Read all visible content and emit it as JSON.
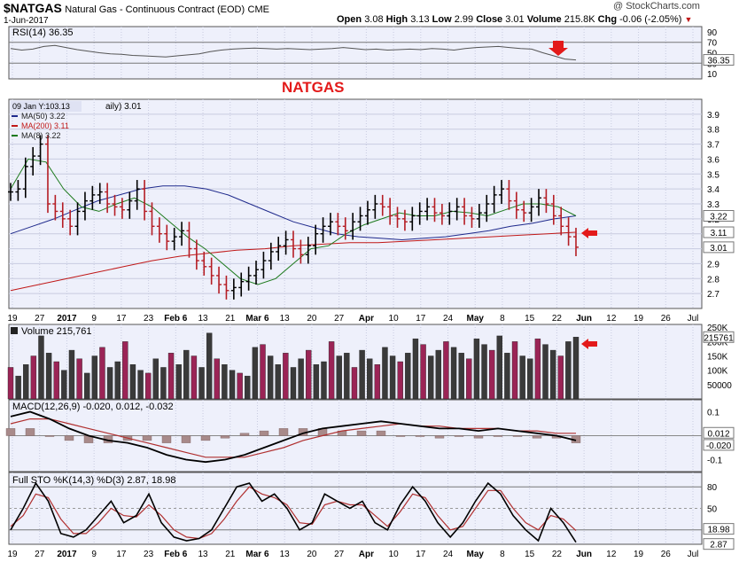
{
  "header": {
    "symbol": "$NATGAS",
    "name": "Natural Gas - Continuous Contract (EOD)",
    "exchange": "CME",
    "date": "1-Jun-2017",
    "watermark": "@ StockCharts.com",
    "ohlc": {
      "open_label": "Open",
      "open": "3.08",
      "high_label": "High",
      "high": "3.13",
      "low_label": "Low",
      "low": "2.99",
      "close_label": "Close",
      "close": "3.01",
      "volume_label": "Volume",
      "volume": "215.8K",
      "chg_label": "Chg",
      "chg": "-0.06 (-2.05%)"
    },
    "down_arrow": "▼"
  },
  "colors": {
    "panel_bg": "#eef0fb",
    "grid": "#c8cbe0",
    "up": "#000000",
    "down": "#b51d24",
    "ma50": "#1f2a8c",
    "ma200": "#c01818",
    "ma8": "#1d7a1d",
    "volume_up": "#3a3a3a",
    "volume_down": "#9b2456",
    "arrow": "#e31a1a",
    "rsi": "#555555",
    "macd": "#000000",
    "signal": "#b03030",
    "histogram": "#a88a8a"
  },
  "annotations": {
    "natgas_label": "NATGAS",
    "hover_tooltip": "09 Jan Y:103.13"
  },
  "chart_data": [
    {
      "type": "line",
      "panel": "rsi",
      "title": "RSI(14) 36.35",
      "ylim": [
        0,
        100
      ],
      "y_ticks": [
        10,
        30,
        50,
        70,
        90
      ],
      "reference_lines": [
        30,
        70
      ],
      "current_value_label": "36.35",
      "series": [
        {
          "name": "RSI(14)",
          "values": [
            58,
            55,
            57,
            62,
            64,
            60,
            56,
            53,
            50,
            48,
            47,
            45,
            44,
            43,
            42,
            44,
            46,
            48,
            52,
            55,
            57,
            58,
            59,
            58,
            57,
            58,
            57,
            56,
            57,
            58,
            60,
            58,
            56,
            57,
            55,
            56,
            57,
            56,
            58,
            57,
            55,
            58,
            60,
            61,
            62,
            60,
            58,
            57,
            50,
            44,
            38,
            36.35
          ]
        }
      ]
    },
    {
      "type": "candlestick",
      "panel": "price",
      "title": "NATGAS",
      "ylim": [
        2.6,
        4.0
      ],
      "y_ticks": [
        2.7,
        2.8,
        2.9,
        3.0,
        3.1,
        3.2,
        3.3,
        3.4,
        3.5,
        3.6,
        3.7,
        3.8,
        3.9
      ],
      "x_tick_labels": [
        "19",
        "27",
        "2017",
        "9",
        "17",
        "23",
        "Feb 6",
        "13",
        "21",
        "Mar 6",
        "13",
        "20",
        "27",
        "Apr",
        "10",
        "17",
        "24",
        "May",
        "8",
        "15",
        "22",
        "Jun",
        "12",
        "19",
        "26",
        "Jul"
      ],
      "legend": [
        {
          "label": "MA(50) 3.22",
          "color_key": "ma50"
        },
        {
          "label": "MA(200) 3.11",
          "color_key": "ma200"
        },
        {
          "label": "MA(8) 3.22",
          "color_key": "ma8"
        }
      ],
      "partial_legend_text": "aily) 3.01",
      "axis_value_labels": [
        "3.22",
        "3.11",
        "3.01"
      ],
      "closes": [
        3.38,
        3.4,
        3.55,
        3.62,
        3.7,
        3.3,
        3.25,
        3.2,
        3.15,
        3.25,
        3.32,
        3.36,
        3.38,
        3.3,
        3.28,
        3.26,
        3.32,
        3.4,
        3.25,
        3.15,
        3.1,
        3.05,
        3.08,
        3.12,
        3.0,
        2.92,
        2.88,
        2.82,
        2.76,
        2.72,
        2.74,
        2.78,
        2.82,
        2.86,
        2.92,
        2.98,
        3.02,
        3.06,
        3.0,
        2.96,
        3.02,
        3.1,
        3.15,
        3.18,
        3.15,
        3.12,
        3.18,
        3.22,
        3.26,
        3.3,
        3.28,
        3.22,
        3.2,
        3.18,
        3.22,
        3.25,
        3.28,
        3.24,
        3.22,
        3.25,
        3.28,
        3.22,
        3.2,
        3.24,
        3.3,
        3.36,
        3.4,
        3.32,
        3.26,
        3.24,
        3.28,
        3.34,
        3.3,
        3.22,
        3.15,
        3.08,
        3.01
      ],
      "series": [
        {
          "name": "MA(50)",
          "values": [
            3.1,
            3.15,
            3.2,
            3.26,
            3.32,
            3.36,
            3.4,
            3.42,
            3.42,
            3.4,
            3.36,
            3.3,
            3.24,
            3.18,
            3.14,
            3.1,
            3.08,
            3.07,
            3.06,
            3.07,
            3.08,
            3.1,
            3.12,
            3.15,
            3.17,
            3.2,
            3.22
          ]
        },
        {
          "name": "MA(200)",
          "values": [
            2.72,
            2.76,
            2.8,
            2.84,
            2.88,
            2.92,
            2.95,
            2.97,
            2.99,
            3.0,
            3.02,
            3.03,
            3.04,
            3.04,
            3.05,
            3.06,
            3.07,
            3.08,
            3.09,
            3.1,
            3.11
          ]
        },
        {
          "name": "MA(8)",
          "values": [
            3.4,
            3.6,
            3.58,
            3.4,
            3.28,
            3.25,
            3.3,
            3.34,
            3.28,
            3.18,
            3.08,
            3.0,
            2.9,
            2.8,
            2.76,
            2.8,
            2.9,
            3.0,
            3.02,
            3.1,
            3.16,
            3.2,
            3.24,
            3.22,
            3.22,
            3.25,
            3.24,
            3.22,
            3.26,
            3.3,
            3.3,
            3.28,
            3.22
          ]
        }
      ]
    },
    {
      "type": "bar",
      "panel": "volume",
      "title": "Volume 215,761",
      "ylim": [
        0,
        260000
      ],
      "y_tick_labels": [
        "250K",
        "200K",
        "150K",
        "100K",
        "50000"
      ],
      "current_value_label": "215761",
      "values": [
        110,
        80,
        120,
        150,
        220,
        160,
        130,
        100,
        170,
        140,
        90,
        150,
        180,
        110,
        130,
        200,
        120,
        100,
        90,
        140,
        110,
        160,
        120,
        170,
        150,
        110,
        230,
        140,
        120,
        100,
        90,
        80,
        180,
        190,
        150,
        120,
        160,
        110,
        140,
        170,
        120,
        130,
        200,
        150,
        160,
        110,
        170,
        140,
        120,
        180,
        150,
        130,
        160,
        210,
        190,
        150,
        170,
        200,
        180,
        160,
        140,
        210,
        190,
        170,
        220,
        160,
        200,
        150,
        140,
        210,
        190,
        170,
        150,
        200,
        215.761
      ]
    },
    {
      "type": "line",
      "panel": "macd",
      "title": "MACD(12,26,9) -0.020, 0.012, -0.032",
      "ylim": [
        -0.15,
        0.15
      ],
      "y_ticks": [
        0.1,
        -0.1
      ],
      "value_labels": [
        "0.012",
        "-0.020"
      ],
      "series": [
        {
          "name": "MACD(12,26,9)",
          "values": [
            0.08,
            0.1,
            0.07,
            0.03,
            0.0,
            -0.02,
            -0.03,
            -0.05,
            -0.08,
            -0.1,
            -0.11,
            -0.1,
            -0.08,
            -0.05,
            -0.02,
            0.01,
            0.03,
            0.04,
            0.05,
            0.06,
            0.05,
            0.04,
            0.03,
            0.03,
            0.02,
            0.03,
            0.02,
            0.01,
            0.0,
            -0.02
          ]
        },
        {
          "name": "signal",
          "values": [
            0.05,
            0.07,
            0.07,
            0.05,
            0.03,
            0.01,
            -0.01,
            -0.03,
            -0.05,
            -0.07,
            -0.09,
            -0.09,
            -0.09,
            -0.07,
            -0.05,
            -0.02,
            0.0,
            0.02,
            0.03,
            0.04,
            0.05,
            0.04,
            0.04,
            0.03,
            0.03,
            0.03,
            0.02,
            0.02,
            0.01,
            0.01
          ]
        },
        {
          "name": "histogram",
          "values": [
            0.03,
            0.03,
            0.0,
            -0.02,
            -0.03,
            -0.03,
            -0.02,
            -0.02,
            -0.03,
            -0.03,
            -0.02,
            -0.01,
            0.01,
            0.02,
            0.03,
            0.03,
            0.03,
            0.02,
            0.02,
            0.02,
            0.0,
            0.0,
            -0.01,
            0.0,
            -0.01,
            0.0,
            0.0,
            -0.01,
            -0.01,
            -0.03
          ]
        }
      ]
    },
    {
      "type": "line",
      "panel": "stochastic",
      "title": "Full STO %K(14,3) %D(3) 2.87, 18.98",
      "ylim": [
        0,
        100
      ],
      "y_ticks": [
        80,
        50,
        20
      ],
      "value_labels": [
        "18.98",
        "2.87"
      ],
      "x_tick_labels": [
        "19",
        "27",
        "2017",
        "9",
        "17",
        "23",
        "Feb 6",
        "13",
        "21",
        "Mar 6",
        "13",
        "20",
        "27",
        "Apr",
        "10",
        "17",
        "24",
        "May",
        "8",
        "15",
        "22",
        "Jun",
        "12",
        "19",
        "26",
        "Jul"
      ],
      "series": [
        {
          "name": "%K(14,3)",
          "values": [
            20,
            50,
            85,
            60,
            15,
            10,
            20,
            40,
            60,
            30,
            40,
            70,
            30,
            10,
            5,
            8,
            20,
            50,
            80,
            85,
            60,
            70,
            50,
            20,
            30,
            70,
            60,
            50,
            60,
            30,
            20,
            55,
            80,
            60,
            30,
            10,
            30,
            60,
            85,
            70,
            40,
            20,
            5,
            50,
            30,
            2.87
          ]
        },
        {
          "name": "%D(3)",
          "values": [
            25,
            40,
            70,
            65,
            35,
            15,
            15,
            30,
            50,
            40,
            38,
            55,
            40,
            20,
            10,
            8,
            15,
            35,
            60,
            80,
            70,
            65,
            55,
            30,
            28,
            55,
            60,
            55,
            55,
            40,
            25,
            45,
            70,
            65,
            40,
            20,
            25,
            50,
            75,
            75,
            50,
            30,
            20,
            40,
            35,
            18.98
          ]
        }
      ]
    }
  ]
}
